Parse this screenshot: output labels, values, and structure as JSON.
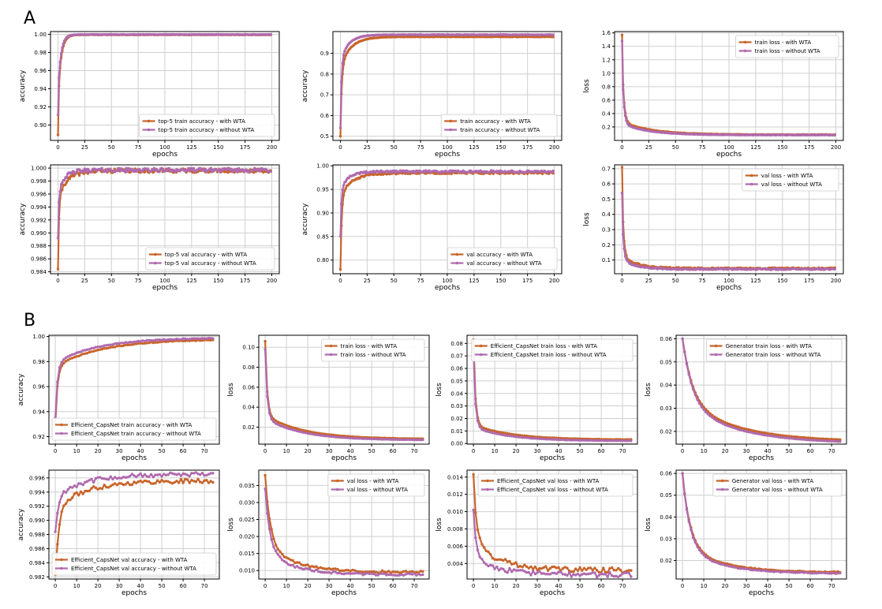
{
  "panel_labels": [
    "A",
    "B"
  ],
  "colors": {
    "with": "#c8652a",
    "without": "#b06aae",
    "grid": "#cfcfcf"
  },
  "chart_data": [
    {
      "id": "A1",
      "type": "line",
      "xlabel": "epochs",
      "ylabel": "accuracy",
      "xlim": [
        -7,
        207
      ],
      "ylim": [
        0.883,
        1.003
      ],
      "xticks": [
        0,
        25,
        50,
        75,
        100,
        125,
        150,
        175,
        200
      ],
      "yticks": [
        0.9,
        0.92,
        0.94,
        0.96,
        0.98,
        1.0
      ],
      "yfmt": 2,
      "grid": true,
      "legend_pos": "bottom-right",
      "series": [
        {
          "name": "top-5 train accuracy - with WTA",
          "color_key": "with",
          "n": 200,
          "y0": 0.889,
          "yinf": 0.9995,
          "amp": 0.068,
          "tau": 3.0,
          "amp2": 0.04,
          "tau2": 0.6,
          "noise": 0.0002,
          "seed": 11
        },
        {
          "name": "top-5 train accuracy - without WTA",
          "color_key": "without",
          "n": 200,
          "y0": 0.911,
          "yinf": 0.9997,
          "amp": 0.06,
          "tau": 2.8,
          "amp2": 0.03,
          "tau2": 0.6,
          "noise": 0.0002,
          "seed": 12
        }
      ]
    },
    {
      "id": "A2",
      "type": "line",
      "xlabel": "epochs",
      "ylabel": "accuracy",
      "xlim": [
        -7,
        207
      ],
      "ylim": [
        0.48,
        1.005
      ],
      "xticks": [
        0,
        25,
        50,
        75,
        100,
        125,
        150,
        175,
        200
      ],
      "yticks": [
        0.5,
        0.6,
        0.7,
        0.8,
        0.9
      ],
      "yfmt": 1,
      "grid": true,
      "legend_pos": "bottom-right",
      "series": [
        {
          "name": "train accuracy - with WTA",
          "color_key": "with",
          "n": 200,
          "y0": 0.5,
          "yinf": 0.98,
          "amp": 0.14,
          "tau": 10,
          "amp2": 0.34,
          "tau2": 1.2,
          "noise": 0.001,
          "seed": 21
        },
        {
          "name": "train accuracy - without WTA",
          "color_key": "without",
          "n": 200,
          "y0": 0.54,
          "yinf": 0.99,
          "amp": 0.12,
          "tau": 8,
          "amp2": 0.33,
          "tau2": 1.0,
          "noise": 0.001,
          "seed": 22
        }
      ]
    },
    {
      "id": "A3",
      "type": "line",
      "xlabel": "epochs",
      "ylabel": "loss",
      "xlim": [
        -7,
        207
      ],
      "ylim": [
        0.0,
        1.62
      ],
      "xticks": [
        0,
        25,
        50,
        75,
        100,
        125,
        150,
        175,
        200
      ],
      "yticks": [
        0.2,
        0.4,
        0.6,
        0.8,
        1.0,
        1.2,
        1.4,
        1.6
      ],
      "yfmt": 1,
      "grid": true,
      "legend_pos": "top-right",
      "series": [
        {
          "name": "train loss - with WTA",
          "color_key": "with",
          "n": 200,
          "y0": 1.57,
          "yinf": 0.085,
          "amp": 0.19,
          "tau": 28,
          "amp2": 1.05,
          "tau2": 1.6,
          "noise": 0.003,
          "seed": 31
        },
        {
          "name": "train loss - without WTA",
          "color_key": "without",
          "n": 200,
          "y0": 1.48,
          "yinf": 0.08,
          "amp": 0.17,
          "tau": 25,
          "amp2": 1.0,
          "tau2": 1.5,
          "noise": 0.003,
          "seed": 32
        }
      ]
    },
    {
      "id": "A4",
      "type": "line",
      "xlabel": "epochs",
      "ylabel": "accuracy",
      "xlim": [
        -7,
        207
      ],
      "ylim": [
        0.9837,
        1.0005
      ],
      "xticks": [
        0,
        25,
        50,
        75,
        100,
        125,
        150,
        175,
        200
      ],
      "yticks": [
        0.984,
        0.986,
        0.988,
        0.99,
        0.992,
        0.994,
        0.996,
        0.998,
        1.0
      ],
      "yfmt": 3,
      "grid": true,
      "legend_pos": "bottom-right",
      "series": [
        {
          "name": "top-5 val accuracy - with WTA",
          "color_key": "with",
          "n": 200,
          "y0": 0.9844,
          "yinf": 0.9996,
          "amp": 0.004,
          "tau": 9,
          "amp2": 0.01,
          "tau2": 1.0,
          "noise": 0.0003,
          "seed": 41
        },
        {
          "name": "top-5 val accuracy - without WTA",
          "color_key": "without",
          "n": 200,
          "y0": 0.9892,
          "yinf": 0.9997,
          "amp": 0.003,
          "tau": 7,
          "amp2": 0.006,
          "tau2": 1.0,
          "noise": 0.0003,
          "seed": 42
        }
      ]
    },
    {
      "id": "A5",
      "type": "line",
      "xlabel": "epochs",
      "ylabel": "accuracy",
      "xlim": [
        -7,
        207
      ],
      "ylim": [
        0.771,
        1.002
      ],
      "xticks": [
        0,
        25,
        50,
        75,
        100,
        125,
        150,
        175,
        200
      ],
      "yticks": [
        0.8,
        0.85,
        0.9,
        0.95,
        1.0
      ],
      "yfmt": 2,
      "grid": true,
      "legend_pos": "bottom-right",
      "series": [
        {
          "name": "val accuracy - with WTA",
          "color_key": "with",
          "n": 200,
          "y0": 0.78,
          "yinf": 0.985,
          "amp": 0.045,
          "tau": 12,
          "amp2": 0.16,
          "tau2": 1.2,
          "noise": 0.002,
          "seed": 51
        },
        {
          "name": "val accuracy - without WTA",
          "color_key": "without",
          "n": 200,
          "y0": 0.85,
          "yinf": 0.988,
          "amp": 0.035,
          "tau": 8,
          "amp2": 0.1,
          "tau2": 1.0,
          "noise": 0.002,
          "seed": 52
        }
      ]
    },
    {
      "id": "A6",
      "type": "line",
      "xlabel": "epochs",
      "ylabel": "loss",
      "xlim": [
        -7,
        207
      ],
      "ylim": [
        0.01,
        0.725
      ],
      "xticks": [
        0,
        25,
        50,
        75,
        100,
        125,
        150,
        175,
        200
      ],
      "yticks": [
        0.1,
        0.2,
        0.3,
        0.4,
        0.5,
        0.6,
        0.7
      ],
      "yfmt": 1,
      "grid": true,
      "legend_pos": "top-right",
      "series": [
        {
          "name": "val loss - with WTA",
          "color_key": "with",
          "n": 200,
          "y0": 0.71,
          "yinf": 0.045,
          "amp": 0.08,
          "tau": 14,
          "amp2": 0.5,
          "tau2": 1.3,
          "noise": 0.005,
          "seed": 61
        },
        {
          "name": "val loss - without WTA",
          "color_key": "without",
          "n": 200,
          "y0": 0.54,
          "yinf": 0.04,
          "amp": 0.07,
          "tau": 12,
          "amp2": 0.38,
          "tau2": 1.2,
          "noise": 0.004,
          "seed": 62
        }
      ]
    },
    {
      "id": "B1",
      "type": "line",
      "xlabel": "epochs",
      "ylabel": "accuracy",
      "xlim": [
        -3,
        77
      ],
      "ylim": [
        0.914,
        1.001
      ],
      "xticks": [
        0,
        10,
        20,
        30,
        40,
        50,
        60,
        70
      ],
      "yticks": [
        0.92,
        0.94,
        0.96,
        0.98,
        1.0
      ],
      "yfmt": 2,
      "grid": true,
      "legend_pos": "bottom-left",
      "series": [
        {
          "name": "Efficient_CapsNet train accuracy - with WTA",
          "color_key": "with",
          "n": 75,
          "y0": 0.93,
          "yinf": 0.998,
          "amp": 0.022,
          "tau": 22,
          "amp2": 0.045,
          "tau2": 1.0,
          "noise": 0.0003,
          "seed": 71
        },
        {
          "name": "Efficient_CapsNet train accuracy - without WTA",
          "color_key": "without",
          "n": 75,
          "y0": 0.935,
          "yinf": 0.999,
          "amp": 0.02,
          "tau": 20,
          "amp2": 0.044,
          "tau2": 1.0,
          "noise": 0.0003,
          "seed": 72
        }
      ]
    },
    {
      "id": "B2",
      "type": "line",
      "xlabel": "epochs",
      "ylabel": "loss",
      "xlim": [
        -3,
        77
      ],
      "ylim": [
        0.003,
        0.112
      ],
      "xticks": [
        0,
        10,
        20,
        30,
        40,
        50,
        60,
        70
      ],
      "yticks": [
        0.02,
        0.04,
        0.06,
        0.08,
        0.1
      ],
      "yfmt": 2,
      "grid": true,
      "legend_pos": "top-right",
      "series": [
        {
          "name": "train loss - with WTA",
          "color_key": "with",
          "n": 75,
          "y0": 0.106,
          "yinf": 0.008,
          "amp": 0.024,
          "tau": 18,
          "amp2": 0.075,
          "tau2": 0.9,
          "noise": 0.0001,
          "seed": 81
        },
        {
          "name": "train loss - without WTA",
          "color_key": "without",
          "n": 75,
          "y0": 0.098,
          "yinf": 0.007,
          "amp": 0.022,
          "tau": 17,
          "amp2": 0.07,
          "tau2": 0.9,
          "noise": 0.0001,
          "seed": 82
        }
      ]
    },
    {
      "id": "B3",
      "type": "line",
      "xlabel": "epochs",
      "ylabel": "loss",
      "xlim": [
        -3,
        77
      ],
      "ylim": [
        -0.0005,
        0.0865
      ],
      "xticks": [
        0,
        10,
        20,
        30,
        40,
        50,
        60,
        70
      ],
      "yticks": [
        0.0,
        0.01,
        0.02,
        0.03,
        0.04,
        0.05,
        0.06,
        0.07,
        0.08
      ],
      "yfmt": 2,
      "grid": true,
      "legend_pos": "top-right",
      "series": [
        {
          "name": "Efficient_CapsNet train loss - with WTA",
          "color_key": "with",
          "n": 75,
          "y0": 0.083,
          "yinf": 0.003,
          "amp": 0.012,
          "tau": 18,
          "amp2": 0.065,
          "tau2": 0.9,
          "noise": 0.0001,
          "seed": 91
        },
        {
          "name": "Efficient_CapsNet train loss - without WTA",
          "color_key": "without",
          "n": 75,
          "y0": 0.075,
          "yinf": 0.002,
          "amp": 0.011,
          "tau": 17,
          "amp2": 0.058,
          "tau2": 0.9,
          "noise": 0.0001,
          "seed": 92
        }
      ]
    },
    {
      "id": "B4",
      "type": "line",
      "xlabel": "epochs",
      "ylabel": "loss",
      "xlim": [
        -3,
        77
      ],
      "ylim": [
        0.0145,
        0.0615
      ],
      "xticks": [
        0,
        10,
        20,
        30,
        40,
        50,
        60,
        70
      ],
      "yticks": [
        0.02,
        0.03,
        0.04,
        0.05,
        0.06
      ],
      "yfmt": 2,
      "grid": true,
      "legend_pos": "top-right",
      "series": [
        {
          "name": "Generator train loss - with WTA",
          "color_key": "with",
          "n": 75,
          "y0": 0.06,
          "yinf": 0.0155,
          "amp": 0.018,
          "tau": 25,
          "amp2": 0.027,
          "tau2": 4.5,
          "noise": 5e-05,
          "seed": 101
        },
        {
          "name": "Generator train loss - without WTA",
          "color_key": "without",
          "n": 75,
          "y0": 0.06,
          "yinf": 0.0148,
          "amp": 0.018,
          "tau": 24,
          "amp2": 0.028,
          "tau2": 4.3,
          "noise": 5e-05,
          "seed": 102
        }
      ]
    },
    {
      "id": "B5",
      "type": "line",
      "xlabel": "epochs",
      "ylabel": "accuracy",
      "xlim": [
        -3,
        77
      ],
      "ylim": [
        0.9817,
        0.9971
      ],
      "xticks": [
        0,
        10,
        20,
        30,
        40,
        50,
        60,
        70
      ],
      "yticks": [
        0.982,
        0.984,
        0.986,
        0.988,
        0.99,
        0.992,
        0.994,
        0.996
      ],
      "yfmt": 3,
      "grid": true,
      "legend_pos": "bottom-left",
      "series": [
        {
          "name": "Efficient_CapsNet val accuracy - with WTA",
          "color_key": "with",
          "n": 75,
          "y0": 0.9823,
          "yinf": 0.9956,
          "amp": 0.004,
          "tau": 14,
          "amp2": 0.01,
          "tau2": 1.5,
          "noise": 0.0003,
          "seed": 111
        },
        {
          "name": "Efficient_CapsNet val accuracy - without WTA",
          "color_key": "without",
          "n": 75,
          "y0": 0.9884,
          "yinf": 0.9965,
          "amp": 0.003,
          "tau": 14,
          "amp2": 0.005,
          "tau2": 1.5,
          "noise": 0.0003,
          "seed": 112
        }
      ]
    },
    {
      "id": "B6",
      "type": "line",
      "xlabel": "epochs",
      "ylabel": "loss",
      "xlim": [
        -3,
        77
      ],
      "ylim": [
        0.0075,
        0.0395
      ],
      "xticks": [
        0,
        10,
        20,
        30,
        40,
        50,
        60,
        70
      ],
      "yticks": [
        0.01,
        0.015,
        0.02,
        0.025,
        0.03,
        0.035
      ],
      "yfmt": 3,
      "grid": true,
      "legend_pos": "top-right",
      "series": [
        {
          "name": "val loss - with WTA",
          "color_key": "with",
          "n": 75,
          "y0": 0.038,
          "yinf": 0.0095,
          "amp": 0.008,
          "tau": 14,
          "amp2": 0.02,
          "tau2": 2.5,
          "noise": 0.0003,
          "seed": 121
        },
        {
          "name": "val loss - without WTA",
          "color_key": "without",
          "n": 75,
          "y0": 0.034,
          "yinf": 0.0088,
          "amp": 0.007,
          "tau": 13,
          "amp2": 0.018,
          "tau2": 2.3,
          "noise": 0.0003,
          "seed": 122
        }
      ]
    },
    {
      "id": "B7",
      "type": "line",
      "xlabel": "epochs",
      "ylabel": "loss",
      "xlim": [
        -3,
        77
      ],
      "ylim": [
        0.0022,
        0.0148
      ],
      "xticks": [
        0,
        10,
        20,
        30,
        40,
        50,
        60,
        70
      ],
      "yticks": [
        0.004,
        0.006,
        0.008,
        0.01,
        0.012,
        0.014
      ],
      "yfmt": 3,
      "grid": true,
      "legend_pos": "top-right",
      "series": [
        {
          "name": "Efficient_CapsNet val loss - with WTA",
          "color_key": "with",
          "n": 75,
          "y0": 0.0143,
          "yinf": 0.0032,
          "amp": 0.003,
          "tau": 14,
          "amp2": 0.007,
          "tau2": 1.8,
          "noise": 0.0003,
          "seed": 131
        },
        {
          "name": "Efficient_CapsNet val loss - without WTA",
          "color_key": "without",
          "n": 75,
          "y0": 0.0102,
          "yinf": 0.0027,
          "amp": 0.002,
          "tau": 12,
          "amp2": 0.005,
          "tau2": 1.5,
          "noise": 0.0003,
          "seed": 132
        }
      ]
    },
    {
      "id": "B8",
      "type": "line",
      "xlabel": "epochs",
      "ylabel": "loss",
      "xlim": [
        -3,
        77
      ],
      "ylim": [
        0.0115,
        0.0615
      ],
      "xticks": [
        0,
        10,
        20,
        30,
        40,
        50,
        60,
        70
      ],
      "yticks": [
        0.02,
        0.03,
        0.04,
        0.05,
        0.06
      ],
      "yfmt": 2,
      "grid": true,
      "legend_pos": "top-right",
      "series": [
        {
          "name": "Generator val loss - with WTA",
          "color_key": "with",
          "n": 75,
          "y0": 0.06,
          "yinf": 0.0145,
          "amp": 0.012,
          "tau": 18,
          "amp2": 0.033,
          "tau2": 3.6,
          "noise": 0.0002,
          "seed": 141
        },
        {
          "name": "Generator val loss - without WTA",
          "color_key": "without",
          "n": 75,
          "y0": 0.06,
          "yinf": 0.014,
          "amp": 0.012,
          "tau": 17,
          "amp2": 0.034,
          "tau2": 3.4,
          "noise": 0.0002,
          "seed": 142
        }
      ]
    }
  ]
}
